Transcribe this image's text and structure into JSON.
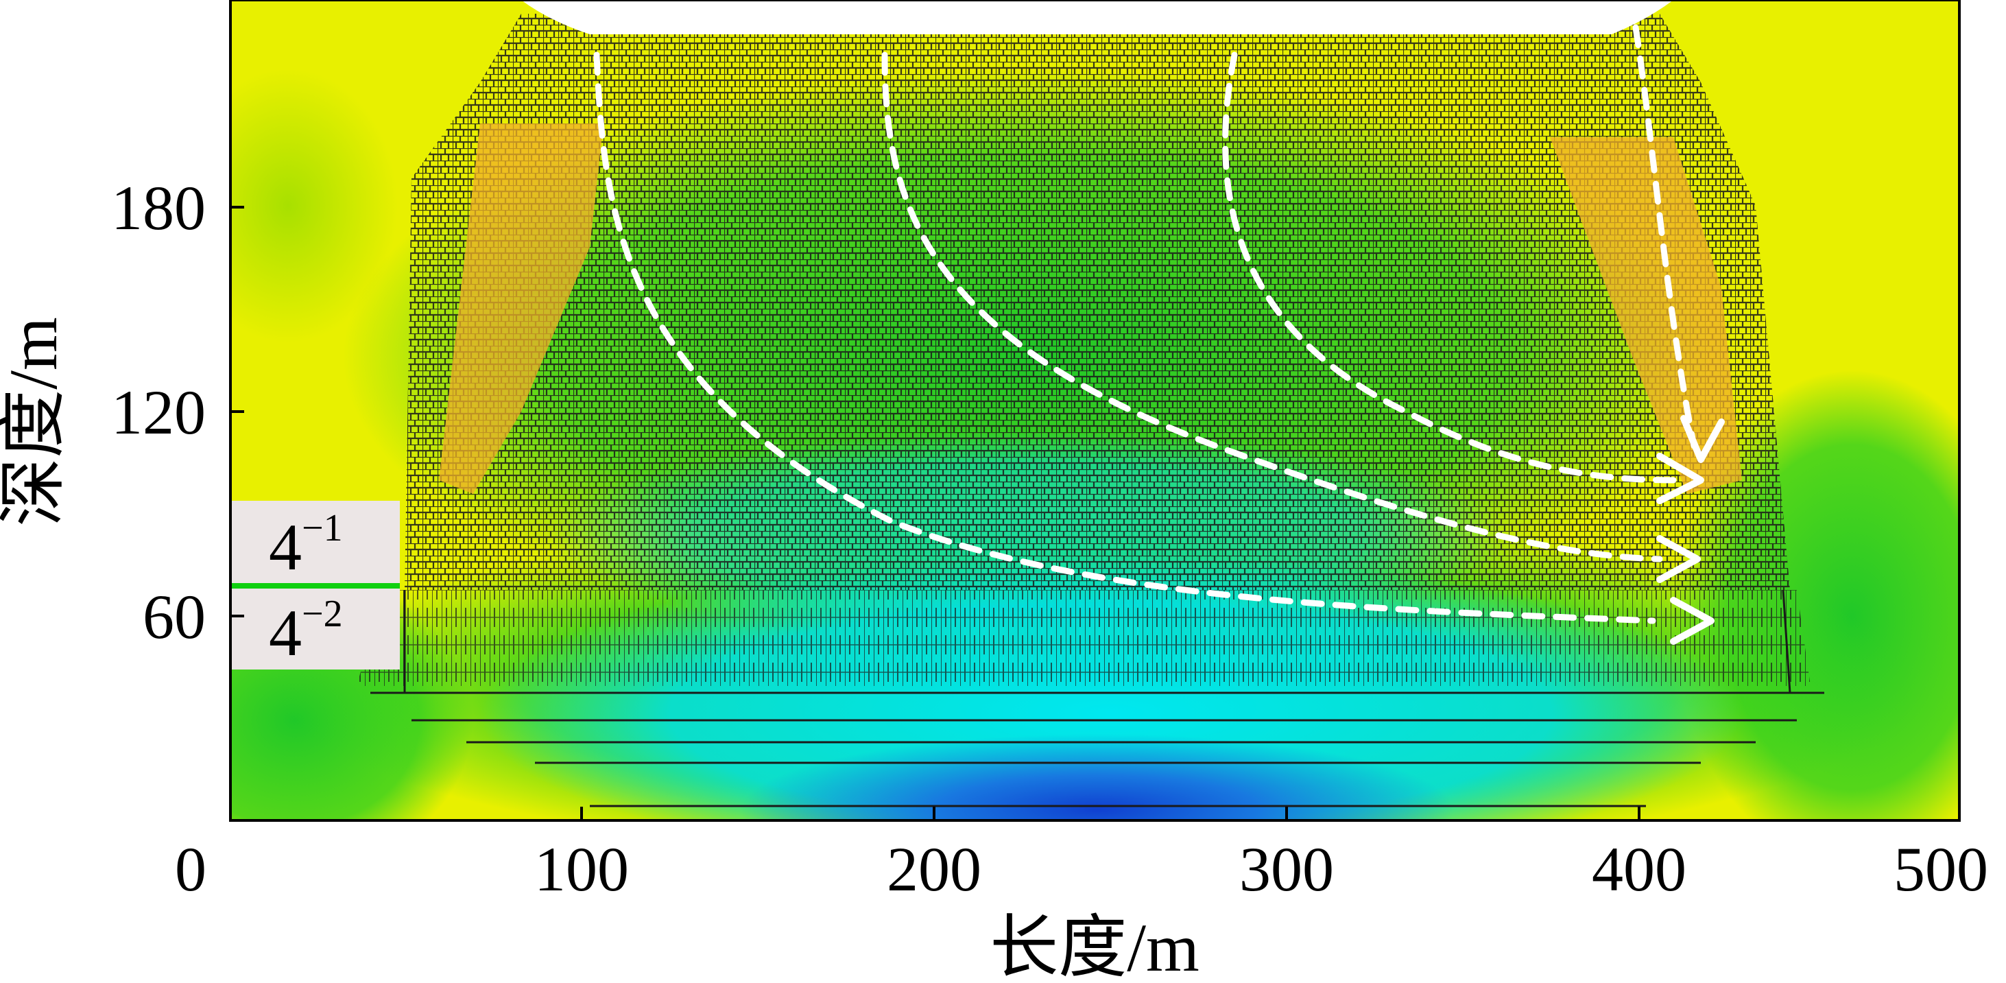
{
  "axes": {
    "x_label": "长度/m",
    "y_label": "深度/m",
    "x_ticks": [
      "0",
      "100",
      "200",
      "300",
      "400",
      "500"
    ],
    "y_ticks": [
      "60",
      "120",
      "180"
    ],
    "x_range": [
      0,
      500
    ],
    "y_range": [
      0,
      240
    ]
  },
  "layers": [
    {
      "base": "4",
      "sup": "−1"
    },
    {
      "base": "4",
      "sup": "−2"
    }
  ],
  "colors": {
    "yellow": "#e8f000",
    "orange": "#f0b028",
    "green": "#28d018",
    "cyan": "#00e8f0",
    "blue": "#1878e0",
    "deep_blue": "#1040d0",
    "crack_lines": "#1a1a1a",
    "flow_arrows": "#ffffff",
    "layer_box": "#ece6e6",
    "layer_separator": "#10d010"
  },
  "flow_arrows": {
    "count": 4,
    "style": "dashed",
    "color": "white"
  }
}
